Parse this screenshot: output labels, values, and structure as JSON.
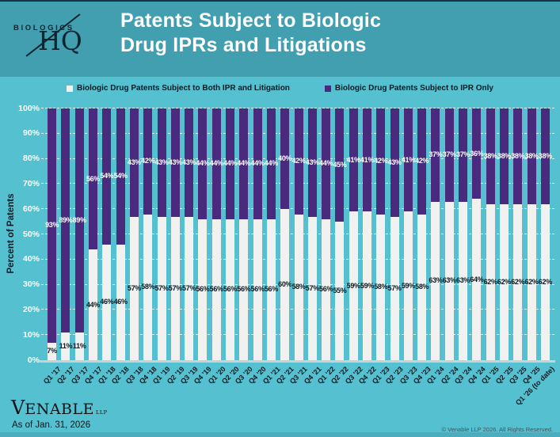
{
  "header": {
    "logo_top": "BIOLOGICS",
    "logo_bottom": "HQ",
    "title_line1": "Patents Subject to Biologic",
    "title_line2": "Drug IPRs and Litigations"
  },
  "chart_data": {
    "type": "bar",
    "stacked": true,
    "title": "Patents Subject to Biologic Drug IPRs and Litigations",
    "ylabel": "Percent of Patents",
    "xlabel": "",
    "ylim": [
      0,
      100
    ],
    "yticks": [
      "0%",
      "10%",
      "20%",
      "30%",
      "40%",
      "50%",
      "60%",
      "70%",
      "80%",
      "90%",
      "100%"
    ],
    "grid": "horizontal-dashed",
    "legend_position": "top",
    "categories": [
      "Q1 '17",
      "Q2 '17",
      "Q3 '17",
      "Q4 '17",
      "Q1 '18",
      "Q2 '18",
      "Q3 '18",
      "Q4 '18",
      "Q1 '19",
      "Q2 '19",
      "Q3 '19",
      "Q4 '19",
      "Q1 '20",
      "Q2 '20",
      "Q3 '20",
      "Q4 '20",
      "Q1 '21",
      "Q2 '21",
      "Q3 '21",
      "Q4 '21",
      "Q1 '22",
      "Q2 '22",
      "Q3 '22",
      "Q4 '22",
      "Q1 '23",
      "Q2 '23",
      "Q3 '23",
      "Q4 '23",
      "Q1 '24",
      "Q2 '24",
      "Q3 '24",
      "Q4 '24",
      "Q1 '25",
      "Q2 '25",
      "Q3 '25",
      "Q4 '25",
      "Q1 '26 (to date)"
    ],
    "series": [
      {
        "name": "Biologic Drug Patents Subject to Both IPR and Litigation",
        "color": "#F1F1EF",
        "label_color": "#0A1A22",
        "values": [
          7,
          11,
          11,
          44,
          46,
          46,
          57,
          58,
          57,
          57,
          57,
          56,
          56,
          56,
          56,
          56,
          56,
          60,
          58,
          57,
          56,
          55,
          59,
          59,
          58,
          57,
          59,
          58,
          63,
          63,
          63,
          64,
          62,
          62,
          62,
          62,
          62
        ]
      },
      {
        "name": "Biologic Drug Patents Subject to IPR Only",
        "color": "#4A2A7C",
        "label_color": "#FFFFFF",
        "values": [
          93,
          89,
          89,
          56,
          54,
          54,
          43,
          42,
          43,
          43,
          43,
          44,
          44,
          44,
          44,
          44,
          44,
          40,
          42,
          43,
          44,
          45,
          41,
          41,
          42,
          43,
          41,
          42,
          37,
          37,
          37,
          36,
          38,
          38,
          38,
          38,
          38
        ]
      }
    ]
  },
  "footer": {
    "logo_first": "V",
    "logo_rest": "ENABLE",
    "logo_suffix": "LLP",
    "as_of": "As of Jan. 31, 2026",
    "copyright": "© Venable LLP 2026. All Rights Reserved."
  },
  "colors": {
    "header_bg": "#429FB0",
    "chart_bg": "#55C0CF",
    "bar_both": "#F1F1EF",
    "bar_ipr_only": "#4A2A7C",
    "gridline": "#FFFFFF",
    "axis_line": "#C9D2D3",
    "title_text": "#FFFFFF"
  }
}
